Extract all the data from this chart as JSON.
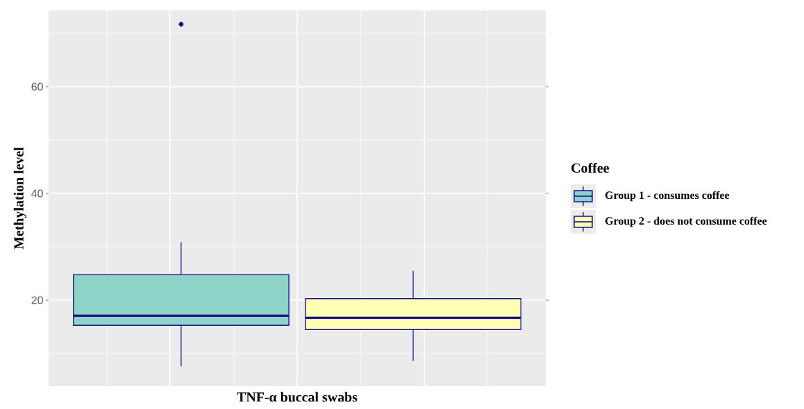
{
  "chart_data": {
    "type": "box",
    "xlabel": "TNF-α buccal swabs",
    "ylabel": "Methylation level",
    "legend_title": "Coffee",
    "categories": [
      null
    ],
    "ylim": [
      3.9,
      74.3
    ],
    "yticks": [
      20,
      40,
      60
    ],
    "grid": true,
    "legend": "right",
    "tick_labels": "y",
    "series": [
      {
        "name": "Group 1 - consumes coffee",
        "color": "#8dd3c7",
        "boxes": [
          {
            "low": 7.6,
            "q1": 15.3,
            "median": 17.1,
            "q3": 24.8,
            "high": 30.9,
            "outliers": [
              71.7
            ]
          }
        ]
      },
      {
        "name": "Group 2 - does not consume coffee",
        "color": "#ffffb3",
        "boxes": [
          {
            "low": 8.6,
            "q1": 14.5,
            "median": 16.7,
            "q3": 20.3,
            "high": 25.5
          }
        ]
      }
    ]
  }
}
